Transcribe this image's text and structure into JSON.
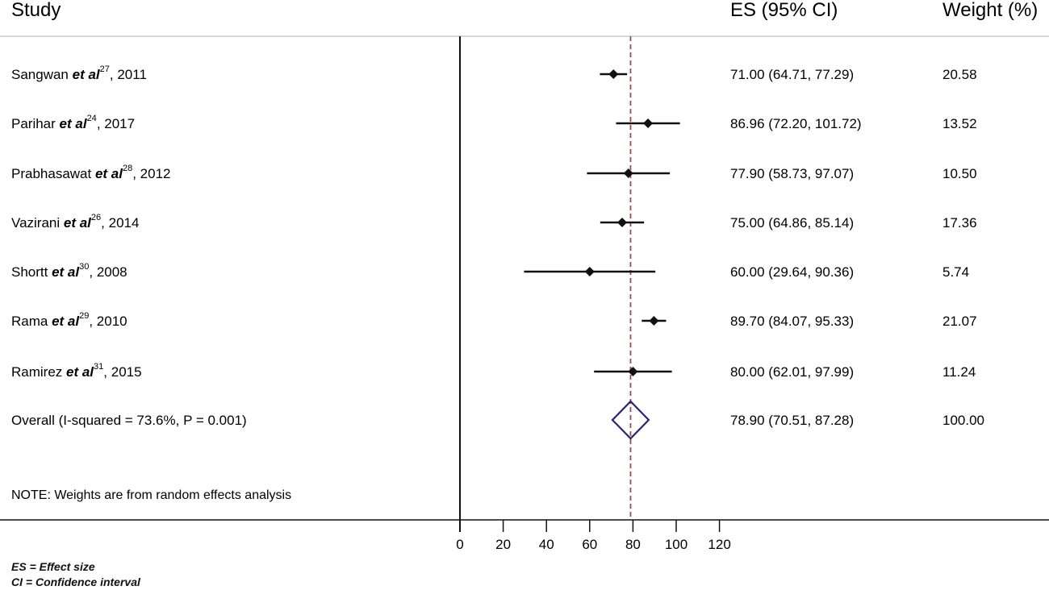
{
  "chart_data": {
    "type": "forest",
    "headers": {
      "study": "Study",
      "es": "ES (95% CI)",
      "weight": "Weight (%)"
    },
    "studies": [
      {
        "author": "Sangwan",
        "etal": "et al",
        "ref": "27",
        "year": ", 2011",
        "es": 71.0,
        "lo": 64.71,
        "hi": 77.29,
        "ci_text": "71.00 (64.71, 77.29)",
        "weight": "20.58"
      },
      {
        "author": "Parihar",
        "etal": "et al",
        "ref": "24",
        "year": ", 2017",
        "es": 86.96,
        "lo": 72.2,
        "hi": 101.72,
        "ci_text": "86.96 (72.20, 101.72)",
        "weight": "13.52"
      },
      {
        "author": "Prabhasawat",
        "etal": "et al",
        "ref": "28",
        "year": ", 2012",
        "es": 77.9,
        "lo": 58.73,
        "hi": 97.07,
        "ci_text": "77.90 (58.73, 97.07)",
        "weight": "10.50"
      },
      {
        "author": "Vazirani",
        "etal": "et al",
        "ref": "26",
        "year": ", 2014",
        "es": 75.0,
        "lo": 64.86,
        "hi": 85.14,
        "ci_text": "75.00 (64.86, 85.14)",
        "weight": "17.36"
      },
      {
        "author": "Shortt",
        "etal": "et al",
        "ref": "30",
        "year": ", 2008",
        "es": 60.0,
        "lo": 29.64,
        "hi": 90.36,
        "ci_text": "60.00 (29.64, 90.36)",
        "weight": "5.74"
      },
      {
        "author": "Rama",
        "etal": "et al",
        "ref": "29",
        "year": ", 2010",
        "es": 89.7,
        "lo": 84.07,
        "hi": 95.33,
        "ci_text": "89.70 (84.07, 95.33)",
        "weight": "21.07"
      },
      {
        "author": "Ramirez",
        "etal": "et al",
        "ref": "31",
        "year": ", 2015",
        "es": 80.0,
        "lo": 62.01,
        "hi": 97.99,
        "ci_text": "80.00 (62.01, 97.99)",
        "weight": "11.24"
      }
    ],
    "overall": {
      "label": "Overall  (I-squared = 73.6%, P = 0.001)",
      "es": 78.9,
      "lo": 70.51,
      "hi": 87.28,
      "ci_text": "78.90 (70.51, 87.28)",
      "weight": "100.00"
    },
    "note": "NOTE: Weights are from random effects analysis",
    "x_ticks": [
      0,
      20,
      40,
      60,
      80,
      100,
      120
    ],
    "xlim": [
      0,
      120
    ],
    "reference_line": 78.9,
    "colors": {
      "marker": "#111111",
      "diamond": "#27276e",
      "reference": "#a04848",
      "axis": "#111111",
      "divider": "#cccccc"
    }
  },
  "footnotes": {
    "es": "ES = Effect size",
    "ci": "CI = Confidence interval"
  }
}
